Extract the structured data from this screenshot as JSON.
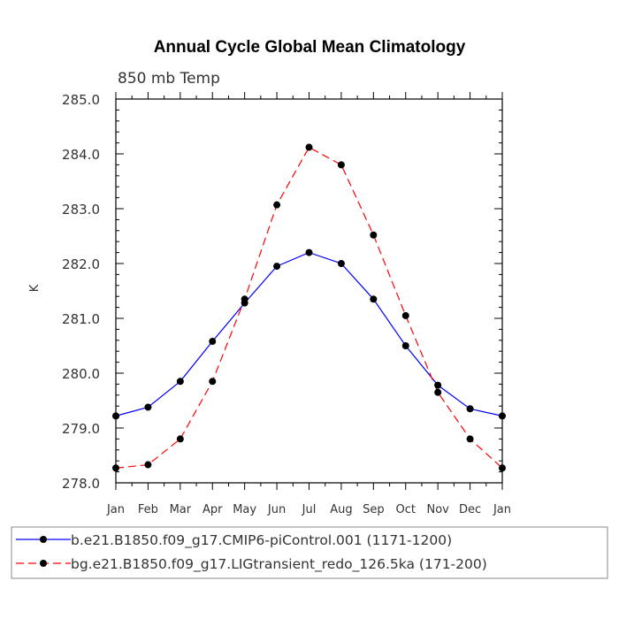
{
  "chart_data": {
    "type": "line",
    "title": "Annual Cycle Global Mean Climatology",
    "subtitle": "850 mb Temp",
    "xlabel": "",
    "ylabel": "K",
    "categories": [
      "Jan",
      "Feb",
      "Mar",
      "Apr",
      "May",
      "Jun",
      "Jul",
      "Aug",
      "Sep",
      "Oct",
      "Nov",
      "Dec",
      "Jan"
    ],
    "ylim": [
      278.0,
      285.0
    ],
    "yticks": [
      "278.0",
      "279.0",
      "280.0",
      "281.0",
      "282.0",
      "283.0",
      "284.0",
      "285.0"
    ],
    "grid": false,
    "legend_position": "bottom",
    "series": [
      {
        "name": "b.e21.B1850.f09_g17.CMIP6-piControl.001 (1171-1200)",
        "color": "#0000ff",
        "style": "solid",
        "values": [
          279.22,
          279.38,
          279.85,
          280.58,
          281.28,
          281.95,
          282.2,
          282.0,
          281.35,
          280.5,
          279.78,
          279.35,
          279.22
        ]
      },
      {
        "name": "bg.e21.B1850.f09_g17.LIGtransient_redo_126.5ka (171-200)",
        "color": "#ff0000",
        "style": "dashed",
        "values": [
          278.27,
          278.33,
          278.8,
          279.85,
          281.35,
          283.07,
          284.12,
          283.8,
          282.52,
          281.05,
          279.65,
          278.8,
          278.27
        ]
      }
    ]
  }
}
